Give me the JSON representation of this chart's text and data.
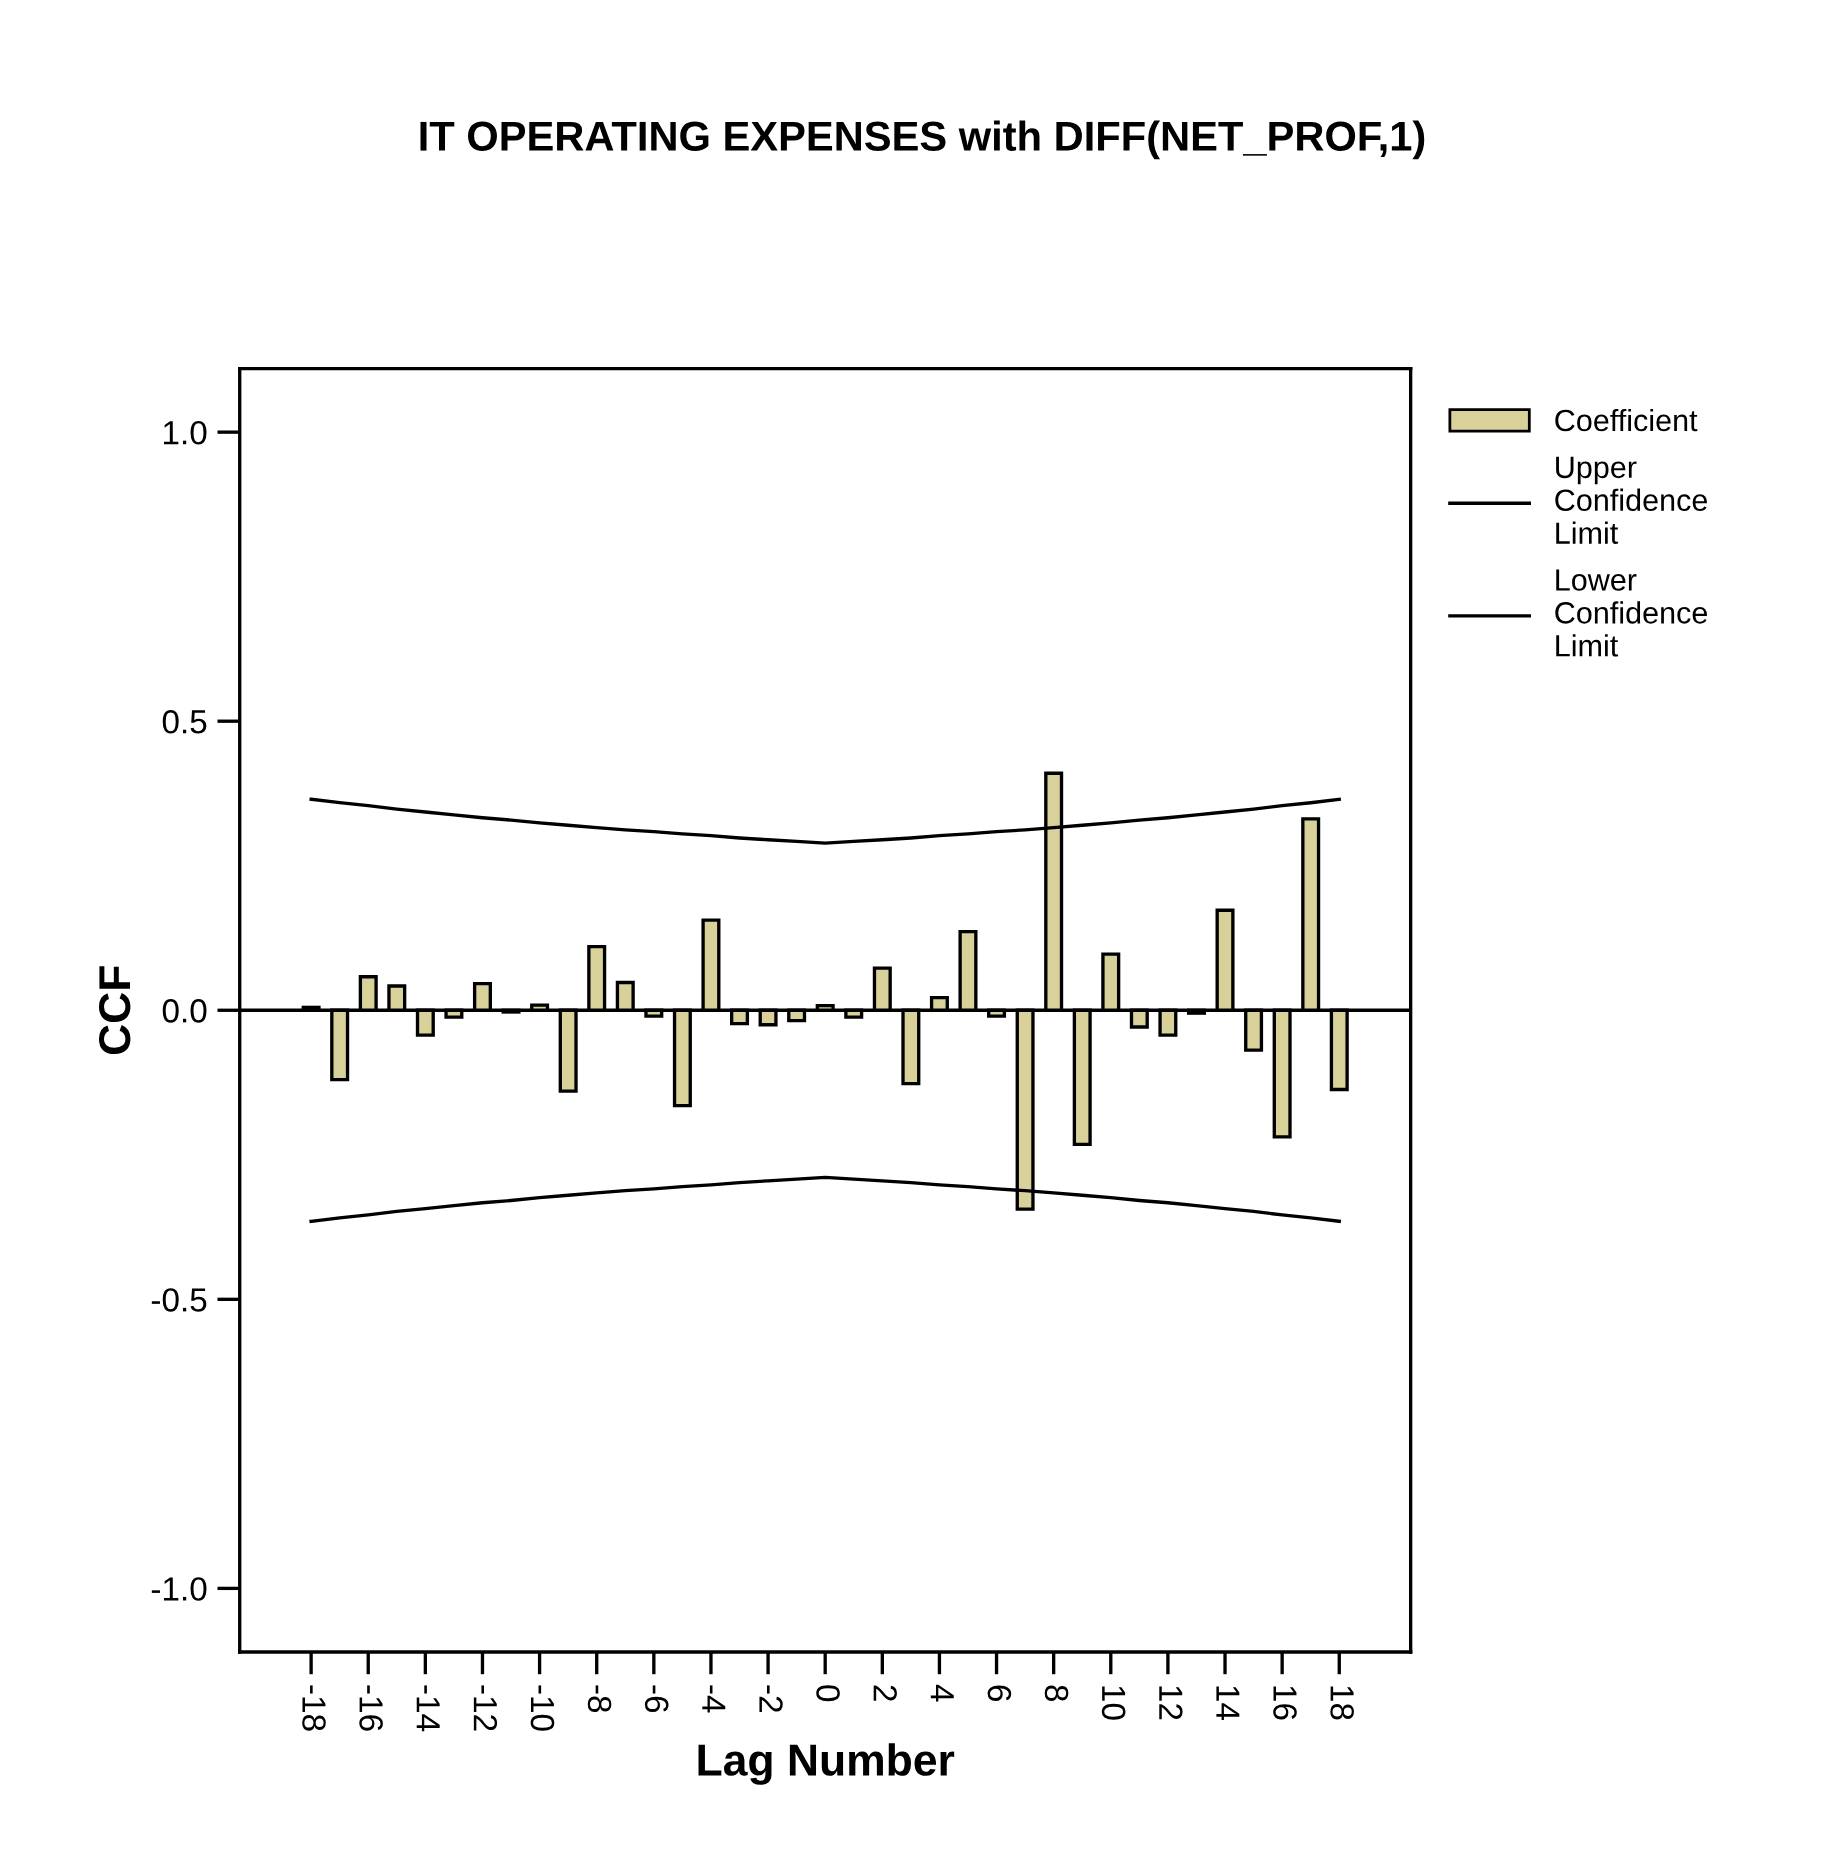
{
  "chart_data": {
    "type": "bar",
    "title": "IT OPERATING EXPENSES with DIFF(NET_PROF,1)",
    "xlabel": "Lag Number",
    "ylabel": "CCF",
    "x": [
      -18,
      -17,
      -16,
      -15,
      -14,
      -13,
      -12,
      -11,
      -10,
      -9,
      -8,
      -7,
      -6,
      -5,
      -4,
      -3,
      -2,
      -1,
      0,
      1,
      2,
      3,
      4,
      5,
      6,
      7,
      8,
      9,
      10,
      11,
      12,
      13,
      14,
      15,
      16,
      17,
      18
    ],
    "series": [
      {
        "name": "Coefficient",
        "color": "#d8d29a",
        "values": [
          0.005,
          -0.12,
          0.058,
          0.042,
          -0.043,
          -0.012,
          0.046,
          -0.003,
          0.009,
          -0.14,
          0.11,
          0.048,
          -0.01,
          -0.165,
          0.156,
          -0.023,
          -0.025,
          -0.018,
          0.008,
          -0.012,
          0.073,
          -0.127,
          0.022,
          0.136,
          -0.01,
          -0.344,
          0.41,
          -0.232,
          0.097,
          -0.029,
          -0.043,
          -0.005,
          0.173,
          -0.069,
          -0.219,
          0.331,
          -0.137
        ]
      },
      {
        "name": "Upper\nConfidence\nLimit",
        "type": "line",
        "color": "#000000",
        "values": [
          0.365,
          0.359,
          0.354,
          0.348,
          0.343,
          0.338,
          0.333,
          0.329,
          0.324,
          0.32,
          0.316,
          0.312,
          0.309,
          0.305,
          0.302,
          0.298,
          0.295,
          0.292,
          0.289,
          0.292,
          0.295,
          0.298,
          0.302,
          0.305,
          0.309,
          0.312,
          0.316,
          0.32,
          0.324,
          0.329,
          0.333,
          0.338,
          0.343,
          0.348,
          0.354,
          0.359,
          0.365
        ]
      },
      {
        "name": "Lower\nConfidence\nLimit",
        "type": "line",
        "color": "#000000",
        "values": [
          -0.365,
          -0.359,
          -0.354,
          -0.348,
          -0.343,
          -0.338,
          -0.333,
          -0.329,
          -0.324,
          -0.32,
          -0.316,
          -0.312,
          -0.309,
          -0.305,
          -0.302,
          -0.298,
          -0.295,
          -0.292,
          -0.289,
          -0.292,
          -0.295,
          -0.298,
          -0.302,
          -0.305,
          -0.309,
          -0.312,
          -0.316,
          -0.32,
          -0.324,
          -0.329,
          -0.333,
          -0.338,
          -0.343,
          -0.348,
          -0.354,
          -0.359,
          -0.365
        ]
      }
    ],
    "xlim": [
      -20.5,
      20.5
    ],
    "xticks": [
      -18,
      -16,
      -14,
      -12,
      -10,
      -8,
      -6,
      -4,
      -2,
      0,
      2,
      4,
      6,
      8,
      10,
      12,
      14,
      16,
      18
    ],
    "ylim": [
      -1.11,
      1.11
    ],
    "yticks": [
      {
        "value": -1,
        "label": "-1.0"
      },
      {
        "value": -0.5,
        "label": "-0.5"
      },
      {
        "value": 0,
        "label": "0.0"
      },
      {
        "value": 0.5,
        "label": "0.5"
      },
      {
        "value": 1,
        "label": "1.0"
      }
    ],
    "ref_lines": [
      {
        "axis": "y",
        "value": 0,
        "color": "#000000"
      }
    ],
    "legend": "top right",
    "grid": false
  }
}
